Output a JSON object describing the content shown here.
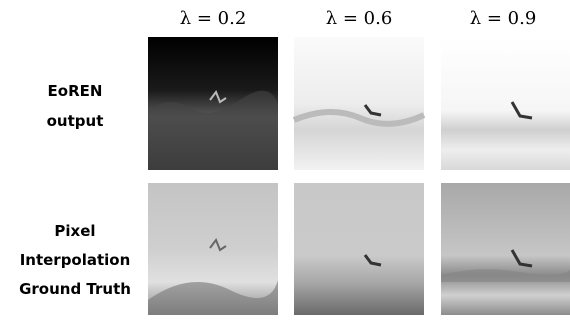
{
  "columns": [
    "λ = 0.2",
    "λ = 0.6",
    "λ = 0.9"
  ],
  "rows": [
    {
      "label_lines": [
        "EoREN",
        "output"
      ]
    },
    {
      "label_lines": [
        "Pixel",
        "Interpolation",
        "Ground Truth"
      ]
    }
  ]
}
